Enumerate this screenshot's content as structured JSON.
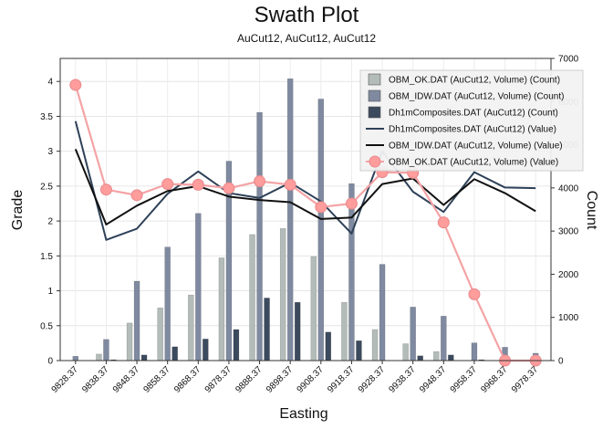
{
  "chart_data": {
    "type": "bar",
    "title": "Swath Plot",
    "subtitle": "AuCut12, AuCut12, AuCut12",
    "xlabel": "Easting",
    "ylabel": "Grade",
    "y2label": "Count",
    "categories": [
      "9828.37",
      "9838.37",
      "9848.37",
      "9858.37",
      "9868.37",
      "9878.37",
      "9888.37",
      "9898.37",
      "9908.37",
      "9918.37",
      "9928.37",
      "9938.37",
      "9948.37",
      "9958.37",
      "9968.37",
      "9978.37"
    ],
    "ylim": [
      0,
      4.33
    ],
    "y2lim": [
      0,
      7000
    ],
    "yticks": [
      "0",
      "0.5",
      "1",
      "1.5",
      "2",
      "2.5",
      "3",
      "3.5",
      "4"
    ],
    "y2ticks": [
      "0",
      "1000",
      "2000",
      "3000",
      "4000",
      "5000",
      "6000",
      "7000"
    ],
    "count_series": [
      {
        "name": "OBM_OK.DAT (AuCut12, Volume) (Count)",
        "color": "#b3bcb8",
        "values": [
          0,
          150,
          870,
          1220,
          1520,
          2380,
          2920,
          3060,
          2410,
          1350,
          720,
          390,
          210,
          0,
          0,
          0
        ]
      },
      {
        "name": "OBM_IDW.DAT (AuCut12, Volume) (Count)",
        "color": "#7f8aa0",
        "values": [
          100,
          490,
          1840,
          2630,
          3410,
          4620,
          5750,
          6530,
          6060,
          4100,
          2230,
          1240,
          1030,
          410,
          310,
          170
        ]
      },
      {
        "name": "Dh1mComposites.DAT (AuCut12) (Count)",
        "color": "#3c4a5e",
        "values": [
          0,
          20,
          130,
          320,
          500,
          720,
          1450,
          1350,
          660,
          460,
          0,
          110,
          130,
          20,
          0,
          0
        ]
      }
    ],
    "line_series": [
      {
        "name": "Dh1mComposites.DAT (AuCut12) (Value)",
        "color": "#2e4158",
        "values": [
          3.43,
          1.73,
          1.89,
          2.39,
          2.71,
          2.4,
          2.33,
          2.55,
          2.28,
          1.82,
          3.0,
          2.42,
          2.13,
          2.7,
          2.48,
          2.47
        ]
      },
      {
        "name": "OBM_IDW.DAT (AuCut12, Volume) (Value)",
        "color": "#111111",
        "values": [
          3.03,
          1.95,
          2.22,
          2.43,
          2.5,
          2.35,
          2.3,
          2.27,
          2.03,
          2.05,
          2.53,
          2.61,
          2.23,
          2.6,
          2.4,
          2.14
        ]
      },
      {
        "name": "OBM_OK.DAT (AuCut12, Volume) (Value)",
        "color": "#f4a3a5",
        "marker": "#ff9c9c",
        "values": [
          3.95,
          2.45,
          2.37,
          2.53,
          2.52,
          2.47,
          2.57,
          2.52,
          2.2,
          2.25,
          2.7,
          2.69,
          1.98,
          0.95,
          0.0,
          0.0
        ]
      }
    ],
    "legend_position": "top-right",
    "legend_entries": [
      {
        "label": "OBM_OK.DAT (AuCut12, Volume) (Count)",
        "kind": "bar",
        "color": "#b3bcb8"
      },
      {
        "label": "OBM_IDW.DAT (AuCut12, Volume) (Count)",
        "kind": "bar",
        "color": "#7f8aa0"
      },
      {
        "label": "Dh1mComposites.DAT (AuCut12) (Count)",
        "kind": "bar",
        "color": "#3c4a5e"
      },
      {
        "label": "Dh1mComposites.DAT (AuCut12) (Value)",
        "kind": "line",
        "color": "#2e4158"
      },
      {
        "label": "OBM_IDW.DAT (AuCut12, Volume) (Value)",
        "kind": "line",
        "color": "#111111"
      },
      {
        "label": "OBM_OK.DAT (AuCut12, Volume) (Value)",
        "kind": "marker",
        "color": "#f4a3a5"
      }
    ],
    "grid": true
  }
}
